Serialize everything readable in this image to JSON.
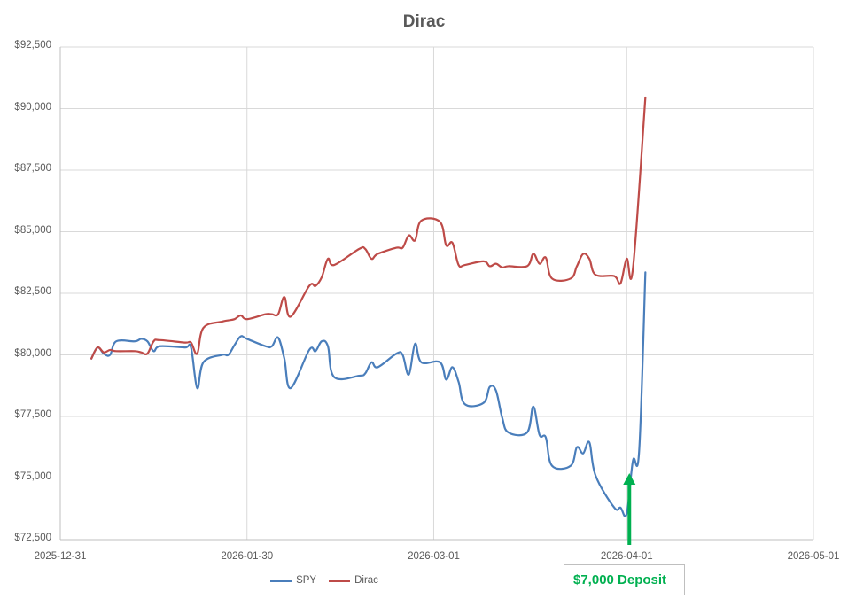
{
  "chart_data": {
    "type": "line",
    "title": "Dirac",
    "xlabel": "",
    "ylabel": "",
    "ylim": [
      72500,
      92500
    ],
    "xlim": [
      "2025-12-31",
      "2026-05-01"
    ],
    "y_ticks": [
      "$72,500",
      "$75,000",
      "$77,500",
      "$80,000",
      "$82,500",
      "$85,000",
      "$87,500",
      "$90,000",
      "$92,500"
    ],
    "x_ticks": [
      "2025-12-31",
      "2026-01-30",
      "2026-03-01",
      "2026-04-01",
      "2026-05-01"
    ],
    "grid": true,
    "legend_position": "bottom",
    "series": [
      {
        "name": "SPY",
        "color": "#4a7ebb",
        "points": [
          [
            "2026-01-05",
            79850
          ],
          [
            "2026-01-06",
            80300
          ],
          [
            "2026-01-07",
            80050
          ],
          [
            "2026-01-08",
            80000
          ],
          [
            "2026-01-09",
            80550
          ],
          [
            "2026-01-12",
            80550
          ],
          [
            "2026-01-13",
            80650
          ],
          [
            "2026-01-14",
            80550
          ],
          [
            "2026-01-15",
            80150
          ],
          [
            "2026-01-16",
            80350
          ],
          [
            "2026-01-20",
            80300
          ],
          [
            "2026-01-21",
            80300
          ],
          [
            "2026-01-22",
            78650
          ],
          [
            "2026-01-23",
            79700
          ],
          [
            "2026-01-26",
            80000
          ],
          [
            "2026-01-27",
            80000
          ],
          [
            "2026-01-28",
            80400
          ],
          [
            "2026-01-29",
            80750
          ],
          [
            "2026-01-30",
            80650
          ],
          [
            "2026-02-02",
            80350
          ],
          [
            "2026-02-03",
            80350
          ],
          [
            "2026-02-04",
            80700
          ],
          [
            "2026-02-05",
            79850
          ],
          [
            "2026-02-06",
            78650
          ],
          [
            "2026-02-09",
            80200
          ],
          [
            "2026-02-10",
            80150
          ],
          [
            "2026-02-11",
            80550
          ],
          [
            "2026-02-12",
            80350
          ],
          [
            "2026-02-13",
            79100
          ],
          [
            "2026-02-17",
            79150
          ],
          [
            "2026-02-18",
            79250
          ],
          [
            "2026-02-19",
            79700
          ],
          [
            "2026-02-20",
            79500
          ],
          [
            "2026-02-23",
            80050
          ],
          [
            "2026-02-24",
            80000
          ],
          [
            "2026-02-25",
            79200
          ],
          [
            "2026-02-26",
            80450
          ],
          [
            "2026-02-27",
            79700
          ],
          [
            "2026-03-02",
            79700
          ],
          [
            "2026-03-03",
            79000
          ],
          [
            "2026-03-04",
            79500
          ],
          [
            "2026-03-05",
            78900
          ],
          [
            "2026-03-06",
            78000
          ],
          [
            "2026-03-09",
            78050
          ],
          [
            "2026-03-10",
            78700
          ],
          [
            "2026-03-11",
            78550
          ],
          [
            "2026-03-12",
            77450
          ],
          [
            "2026-03-13",
            76850
          ],
          [
            "2026-03-16",
            76850
          ],
          [
            "2026-03-17",
            77900
          ],
          [
            "2026-03-18",
            76750
          ],
          [
            "2026-03-19",
            76650
          ],
          [
            "2026-03-20",
            75500
          ],
          [
            "2026-03-23",
            75500
          ],
          [
            "2026-03-24",
            76250
          ],
          [
            "2026-03-25",
            76000
          ],
          [
            "2026-03-26",
            76450
          ],
          [
            "2026-03-27",
            75100
          ],
          [
            "2026-03-30",
            73800
          ],
          [
            "2026-03-31",
            73800
          ],
          [
            "2026-04-01",
            73550
          ],
          [
            "2026-04-02",
            75700
          ],
          [
            "2026-04-03",
            76100
          ],
          [
            "2026-04-04",
            83350
          ]
        ]
      },
      {
        "name": "Dirac",
        "color": "#be4b48",
        "points": [
          [
            "2026-01-05",
            79850
          ],
          [
            "2026-01-06",
            80300
          ],
          [
            "2026-01-07",
            80100
          ],
          [
            "2026-01-08",
            80200
          ],
          [
            "2026-01-09",
            80150
          ],
          [
            "2026-01-12",
            80150
          ],
          [
            "2026-01-13",
            80100
          ],
          [
            "2026-01-14",
            80050
          ],
          [
            "2026-01-15",
            80550
          ],
          [
            "2026-01-16",
            80600
          ],
          [
            "2026-01-20",
            80500
          ],
          [
            "2026-01-21",
            80500
          ],
          [
            "2026-01-22",
            80050
          ],
          [
            "2026-01-23",
            81100
          ],
          [
            "2026-01-26",
            81350
          ],
          [
            "2026-01-27",
            81400
          ],
          [
            "2026-01-28",
            81450
          ],
          [
            "2026-01-29",
            81600
          ],
          [
            "2026-01-30",
            81450
          ],
          [
            "2026-02-02",
            81650
          ],
          [
            "2026-02-03",
            81650
          ],
          [
            "2026-02-04",
            81650
          ],
          [
            "2026-02-05",
            82350
          ],
          [
            "2026-02-06",
            81550
          ],
          [
            "2026-02-09",
            82800
          ],
          [
            "2026-02-10",
            82800
          ],
          [
            "2026-02-11",
            83150
          ],
          [
            "2026-02-12",
            83900
          ],
          [
            "2026-02-13",
            83650
          ],
          [
            "2026-02-17",
            84300
          ],
          [
            "2026-02-18",
            84300
          ],
          [
            "2026-02-19",
            83900
          ],
          [
            "2026-02-20",
            84100
          ],
          [
            "2026-02-23",
            84350
          ],
          [
            "2026-02-24",
            84350
          ],
          [
            "2026-02-25",
            84850
          ],
          [
            "2026-02-26",
            84650
          ],
          [
            "2026-02-27",
            85450
          ],
          [
            "2026-03-02",
            85400
          ],
          [
            "2026-03-03",
            84450
          ],
          [
            "2026-03-04",
            84550
          ],
          [
            "2026-03-05",
            83650
          ],
          [
            "2026-03-06",
            83650
          ],
          [
            "2026-03-09",
            83800
          ],
          [
            "2026-03-10",
            83600
          ],
          [
            "2026-03-11",
            83700
          ],
          [
            "2026-03-12",
            83550
          ],
          [
            "2026-03-13",
            83600
          ],
          [
            "2026-03-16",
            83600
          ],
          [
            "2026-03-17",
            84100
          ],
          [
            "2026-03-18",
            83700
          ],
          [
            "2026-03-19",
            83950
          ],
          [
            "2026-03-20",
            83100
          ],
          [
            "2026-03-23",
            83100
          ],
          [
            "2026-03-24",
            83600
          ],
          [
            "2026-03-25",
            84100
          ],
          [
            "2026-03-26",
            83900
          ],
          [
            "2026-03-27",
            83250
          ],
          [
            "2026-03-30",
            83200
          ],
          [
            "2026-03-31",
            82900
          ],
          [
            "2026-04-01",
            83900
          ],
          [
            "2026-04-02",
            83500
          ],
          [
            "2026-04-04",
            90450
          ]
        ]
      }
    ],
    "annotations": [
      {
        "text": "$7,000 Deposit",
        "x": "2026-04-01",
        "pointer": "up-arrow",
        "color": "#00b050"
      }
    ]
  },
  "title": "Dirac",
  "legend": {
    "spy_label": "SPY",
    "dirac_label": "Dirac"
  },
  "annotation": {
    "label": "$7,000 Deposit"
  },
  "colors": {
    "spy": "#4a7ebb",
    "dirac": "#be4b48",
    "annotation": "#00b050",
    "grid": "#d9d9d9",
    "text": "#595959"
  }
}
